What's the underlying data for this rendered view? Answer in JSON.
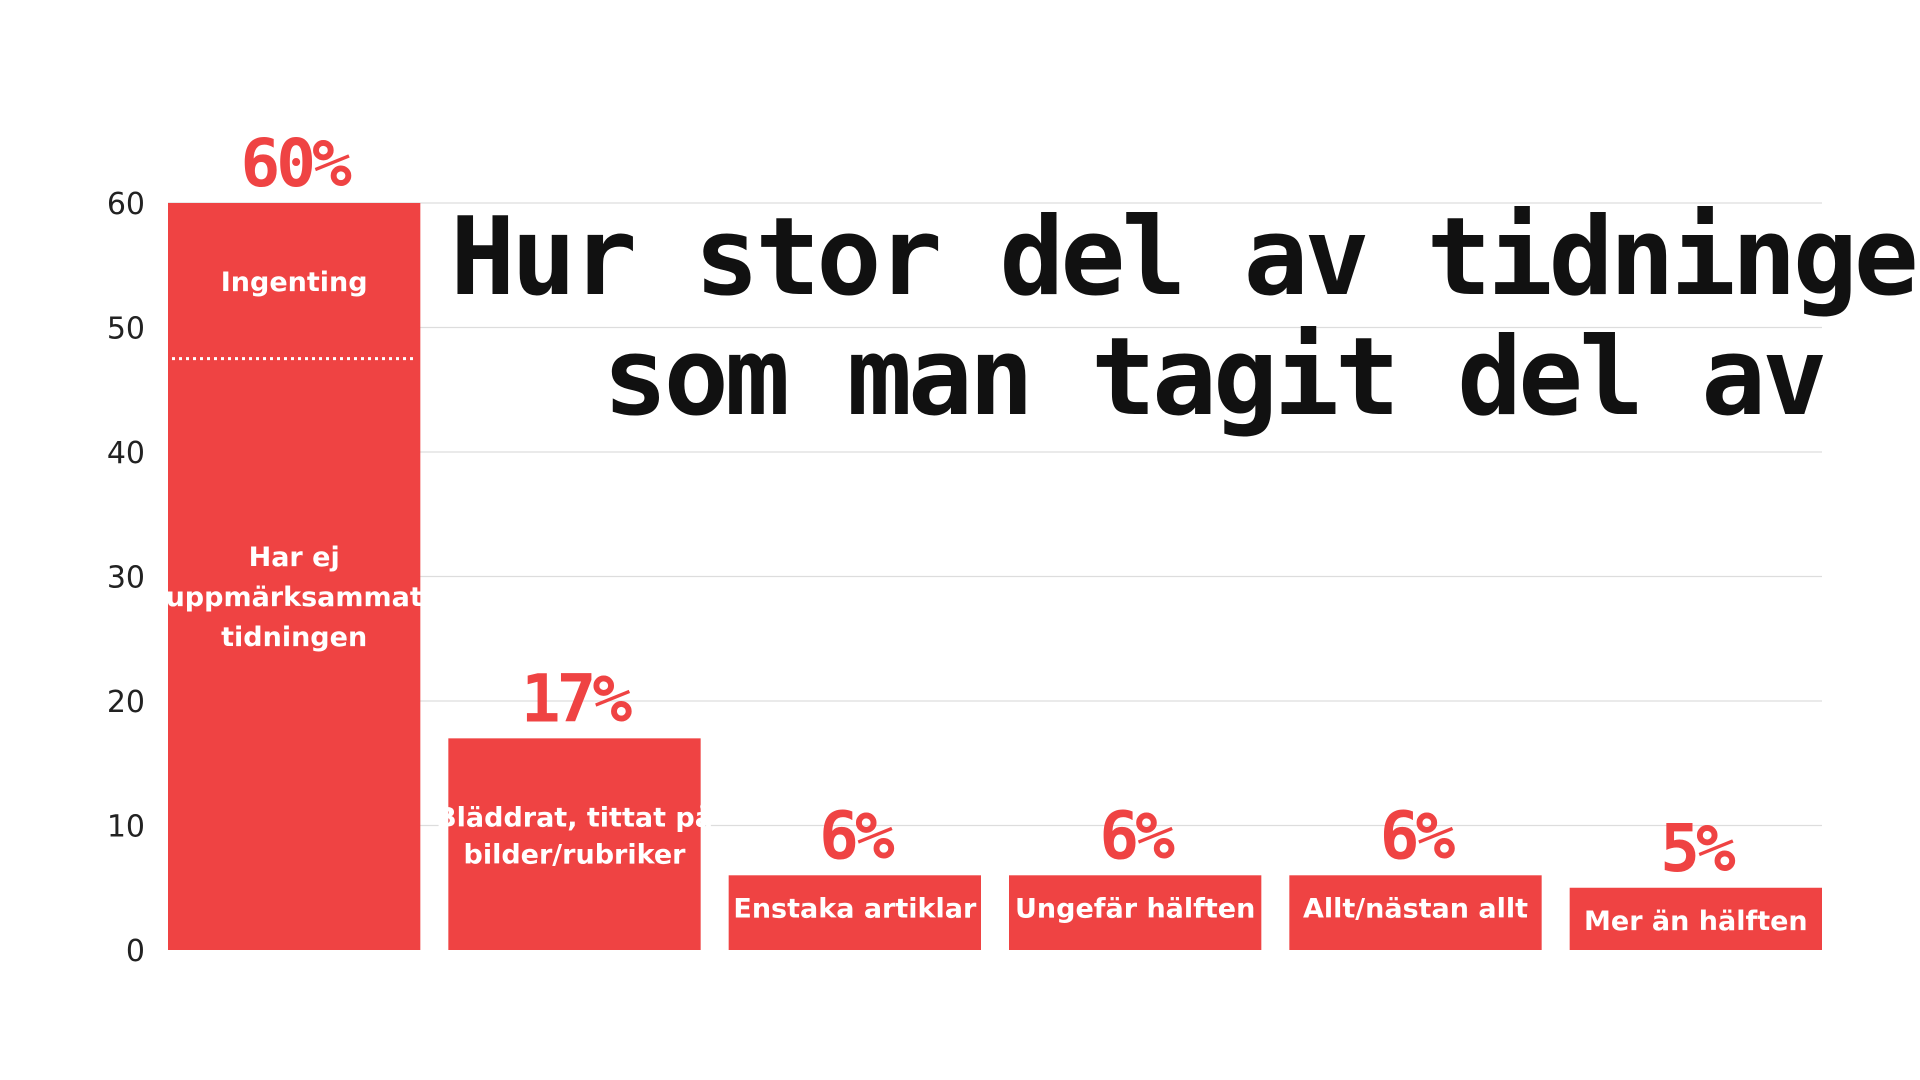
{
  "chart_data": {
    "type": "bar",
    "title": "Hur stor del av tidningen som man tagit del av",
    "title_lines": [
      "Hur stor del av tidningen",
      "som man tagit del av"
    ],
    "ylim": [
      0,
      60
    ],
    "y_ticks": [
      "0",
      "10",
      "20",
      "30",
      "40",
      "50",
      "60"
    ],
    "grid": true,
    "bar_color": "#ef4343",
    "categories": [
      "Ingenting",
      "Bläddrat, tittat på bilder/rubriker",
      "Enstaka artiklar",
      "Ungefär hälften",
      "Allt/nästan allt",
      "Mer än hälften"
    ],
    "values": [
      60,
      17,
      6,
      6,
      6,
      5
    ],
    "value_labels": [
      "60%",
      "17%",
      "6%",
      "6%",
      "6%",
      "5%"
    ],
    "segments_first_bar": [
      {
        "label": "Ingenting",
        "value": 12.5
      },
      {
        "label": "Har ej uppmärksammat tidningen",
        "value": 47.5
      }
    ],
    "bar_text_lines": [
      [
        "Ingenting"
      ],
      [
        "Bläddrat, tittat på",
        "bilder/rubriker"
      ],
      [
        "Enstaka artiklar"
      ],
      [
        "Ungefär hälften"
      ],
      [
        "Allt/nästan allt"
      ],
      [
        "Mer än hälften"
      ]
    ],
    "segment_text_lines": [
      "Har ej",
      "uppmärksammat",
      "tidningen"
    ]
  }
}
